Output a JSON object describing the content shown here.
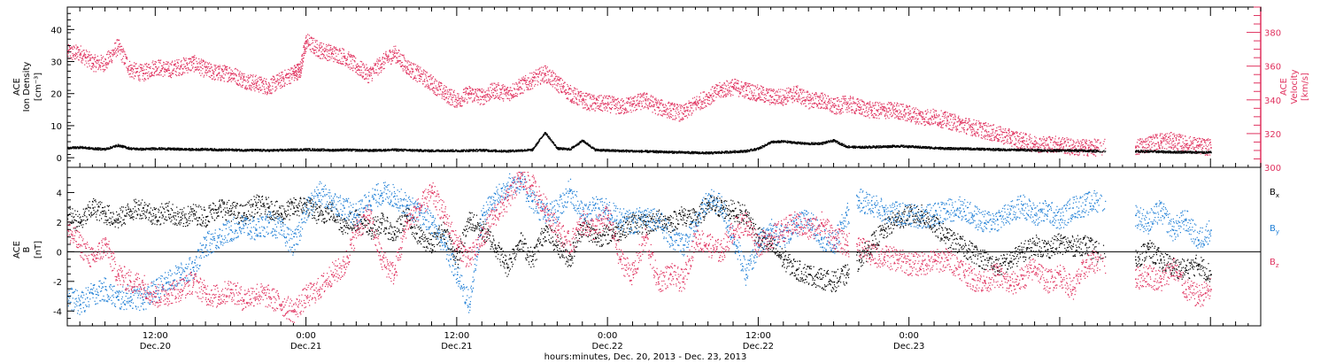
{
  "chart_data": [
    {
      "type": "scatter",
      "ylabel_lines": [
        "ACE",
        "Ion Density",
        "[cm⁻³]"
      ],
      "ylabel_right_lines": [
        "ACE",
        "Velocity",
        "[km/s]"
      ],
      "ylim": [
        -3,
        47
      ],
      "yticks": [
        0,
        10,
        20,
        30,
        40
      ],
      "y2lim": [
        300,
        395
      ],
      "y2ticks": [
        300,
        320,
        340,
        360,
        380
      ],
      "y2_color": "#e0325f",
      "x_range_hours": [
        5,
        100
      ],
      "gaps_hours": [
        [
          87.6,
          90.0
        ]
      ],
      "series": [
        {
          "axis": "right",
          "color": "#e0325f",
          "x": [
            5,
            6,
            7,
            8,
            9,
            10,
            11,
            12,
            13,
            14,
            15,
            16,
            17,
            18,
            19,
            20,
            21,
            22,
            23,
            23.5,
            24,
            25,
            26,
            27,
            28,
            29,
            30,
            31,
            32,
            33,
            34,
            35,
            36,
            37,
            38,
            39,
            40,
            41,
            42,
            43,
            44,
            45,
            46,
            47,
            48,
            49,
            50,
            51,
            52,
            53,
            54,
            55,
            56,
            57,
            58,
            59,
            60,
            61,
            62,
            63,
            64,
            65,
            66,
            67,
            68,
            69,
            70,
            71,
            72,
            73,
            74,
            75,
            76,
            77,
            78,
            79,
            80,
            81,
            82,
            83,
            84,
            85,
            86,
            87,
            90,
            91,
            92,
            93,
            94,
            95,
            96
          ],
          "y": [
            368,
            368,
            362,
            362,
            372,
            358,
            356,
            360,
            358,
            360,
            362,
            358,
            356,
            356,
            352,
            350,
            348,
            352,
            356,
            358,
            375,
            370,
            368,
            366,
            360,
            355,
            362,
            368,
            360,
            355,
            350,
            344,
            340,
            344,
            342,
            346,
            344,
            348,
            352,
            356,
            350,
            344,
            340,
            338,
            338,
            336,
            338,
            340,
            336,
            334,
            332,
            338,
            342,
            346,
            348,
            346,
            344,
            342,
            342,
            344,
            340,
            340,
            336,
            338,
            336,
            334,
            334,
            334,
            332,
            330,
            330,
            328,
            326,
            324,
            322,
            320,
            318,
            316,
            314,
            314,
            314,
            312,
            312,
            312,
            312,
            314,
            316,
            316,
            314,
            313,
            312
          ]
        },
        {
          "axis": "left",
          "color": "#000000",
          "x": [
            5,
            6,
            7,
            8,
            9,
            10,
            11,
            12,
            13,
            14,
            15,
            16,
            17,
            18,
            19,
            20,
            21,
            22,
            23,
            24,
            25,
            26,
            27,
            28,
            29,
            30,
            31,
            32,
            33,
            34,
            35,
            36,
            37,
            38,
            39,
            40,
            41,
            42,
            43,
            44,
            45,
            46,
            47,
            48,
            49,
            50,
            51,
            52,
            53,
            54,
            55,
            56,
            57,
            58,
            59,
            60,
            61,
            62,
            63,
            64,
            65,
            66,
            67,
            68,
            69,
            70,
            71,
            72,
            73,
            74,
            75,
            76,
            77,
            78,
            79,
            80,
            81,
            82,
            83,
            84,
            85,
            86,
            87,
            90,
            91,
            92,
            93,
            94,
            95,
            96
          ],
          "y": [
            3.2,
            3.4,
            3.0,
            2.8,
            4.0,
            3.0,
            2.8,
            3.0,
            2.9,
            2.8,
            2.7,
            2.8,
            2.6,
            2.6,
            2.5,
            2.5,
            2.4,
            2.5,
            2.6,
            2.7,
            2.6,
            2.5,
            2.6,
            2.5,
            2.4,
            2.5,
            2.6,
            2.5,
            2.4,
            2.3,
            2.4,
            2.3,
            2.4,
            2.5,
            2.3,
            2.2,
            2.4,
            2.6,
            8,
            3.0,
            2.8,
            5.5,
            2.6,
            2.4,
            2.3,
            2.2,
            2.1,
            2.0,
            1.9,
            1.8,
            1.7,
            1.6,
            1.8,
            2.0,
            2.2,
            3.0,
            5.0,
            5.2,
            4.8,
            4.5,
            4.6,
            5.5,
            3.6,
            3.4,
            3.5,
            3.6,
            3.8,
            3.6,
            3.4,
            3.2,
            3.0,
            3.0,
            2.9,
            2.8,
            2.7,
            2.6,
            2.6,
            2.5,
            2.4,
            2.4,
            2.4,
            2.3,
            2.2,
            2.2,
            2.1,
            2.0,
            1.9,
            1.9,
            1.8,
            1.8
          ]
        }
      ]
    },
    {
      "type": "scatter",
      "ylabel_lines": [
        "ACE",
        "B",
        "[nT]"
      ],
      "ylim": [
        -5,
        5.7
      ],
      "yticks": [
        -4,
        -2,
        0,
        2,
        4
      ],
      "x_range_hours": [
        5,
        100
      ],
      "gaps_hours": [
        [
          67.2,
          67.8
        ],
        [
          87.6,
          90.0
        ]
      ],
      "series": [
        {
          "name": "B_x",
          "color": "#000000",
          "x": [
            5,
            6,
            7,
            8,
            9,
            10,
            11,
            12,
            13,
            14,
            15,
            16,
            17,
            18,
            19,
            20,
            21,
            22,
            23,
            24,
            25,
            26,
            27,
            28,
            29,
            30,
            31,
            32,
            33,
            34,
            35,
            36,
            37,
            38,
            39,
            40,
            41,
            42,
            43,
            44,
            45,
            46,
            47,
            48,
            49,
            50,
            51,
            52,
            53,
            54,
            55,
            56,
            57,
            58,
            59,
            60,
            61,
            62,
            63,
            64,
            65,
            66,
            67,
            68,
            69,
            70,
            71,
            72,
            73,
            74,
            75,
            76,
            77,
            78,
            79,
            80,
            81,
            82,
            83,
            84,
            85,
            86,
            87,
            90,
            91,
            92,
            93,
            94,
            95,
            96
          ],
          "y": [
            2.5,
            2.0,
            3.0,
            2.6,
            2.2,
            2.8,
            3.0,
            2.4,
            2.8,
            2.2,
            2.6,
            2.4,
            3.0,
            2.8,
            2.5,
            3.2,
            3.0,
            2.6,
            3.0,
            3.2,
            2.5,
            2.8,
            1.8,
            2.2,
            1.5,
            2.0,
            1.2,
            2.5,
            1.0,
            0.5,
            1.5,
            -0.5,
            2.2,
            1.5,
            0.5,
            -1.0,
            0.8,
            -0.5,
            1.5,
            0.5,
            -0.5,
            1.8,
            1.0,
            1.2,
            1.5,
            2.0,
            1.8,
            2.2,
            2.0,
            2.5,
            2.2,
            3.2,
            3.0,
            2.8,
            2.5,
            1.0,
            0.5,
            -0.5,
            -1.2,
            -1.5,
            -1.8,
            -2.0,
            -1.5,
            -0.5,
            0.5,
            1.5,
            2.2,
            2.5,
            2.5,
            1.8,
            1.0,
            0.5,
            0.0,
            -0.5,
            -1.0,
            -0.6,
            0.0,
            0.5,
            0.2,
            0.6,
            0.4,
            0.5,
            0.0,
            -0.5,
            0.2,
            -0.5,
            -1.0,
            -1.2,
            -0.8,
            -1.5
          ]
        },
        {
          "name": "B_y",
          "color": "#1f7fd6",
          "x": [
            5,
            6,
            7,
            8,
            9,
            10,
            11,
            12,
            13,
            14,
            15,
            16,
            17,
            18,
            19,
            20,
            21,
            22,
            23,
            24,
            25,
            26,
            27,
            28,
            29,
            30,
            31,
            32,
            33,
            34,
            35,
            36,
            37,
            38,
            39,
            40,
            41,
            42,
            43,
            44,
            45,
            46,
            47,
            48,
            49,
            50,
            51,
            52,
            53,
            54,
            55,
            56,
            57,
            58,
            59,
            60,
            61,
            62,
            63,
            64,
            65,
            66,
            67,
            68,
            69,
            70,
            71,
            72,
            73,
            74,
            75,
            76,
            77,
            78,
            79,
            80,
            81,
            82,
            83,
            84,
            85,
            86,
            87,
            90,
            91,
            92,
            93,
            94,
            95,
            96
          ],
          "y": [
            -3.0,
            -3.5,
            -2.8,
            -2.5,
            -3.2,
            -3.0,
            -3.2,
            -2.6,
            -2.0,
            -1.5,
            -1.0,
            0.5,
            1.0,
            1.5,
            1.8,
            1.5,
            2.0,
            1.5,
            0.5,
            2.8,
            4.0,
            3.5,
            3.0,
            2.5,
            3.5,
            4.0,
            3.8,
            3.2,
            2.5,
            2.0,
            0.5,
            -1.5,
            -3.5,
            2.5,
            3.5,
            4.5,
            4.8,
            3.5,
            2.5,
            2.8,
            4.2,
            2.5,
            3.0,
            2.8,
            2.2,
            2.0,
            2.5,
            2.2,
            1.0,
            0.5,
            2.0,
            3.5,
            3.2,
            1.0,
            -1.5,
            0.5,
            1.5,
            1.0,
            1.8,
            2.2,
            1.0,
            0.5,
            2.5,
            3.5,
            3.2,
            2.8,
            2.6,
            2.5,
            2.4,
            2.5,
            2.8,
            3.0,
            2.5,
            2.0,
            2.2,
            2.6,
            3.2,
            2.5,
            2.8,
            2.2,
            3.0,
            3.2,
            3.5,
            2.5,
            2.0,
            2.8,
            1.5,
            2.2,
            0.8,
            1.5
          ]
        },
        {
          "name": "B_z",
          "color": "#e0325f",
          "x": [
            5,
            6,
            7,
            8,
            9,
            10,
            11,
            12,
            13,
            14,
            15,
            16,
            17,
            18,
            19,
            20,
            21,
            22,
            23,
            24,
            25,
            26,
            27,
            28,
            29,
            30,
            31,
            32,
            33,
            34,
            35,
            36,
            37,
            38,
            39,
            40,
            41,
            42,
            43,
            44,
            45,
            46,
            47,
            48,
            49,
            50,
            51,
            52,
            53,
            54,
            55,
            56,
            57,
            58,
            59,
            60,
            61,
            62,
            63,
            64,
            65,
            66,
            67,
            68,
            69,
            70,
            71,
            72,
            73,
            74,
            75,
            76,
            77,
            78,
            79,
            80,
            81,
            82,
            83,
            84,
            85,
            86,
            87,
            90,
            91,
            92,
            93,
            94,
            95,
            96
          ],
          "y": [
            1.5,
            0.5,
            -0.5,
            0.5,
            -1.5,
            -2.0,
            -2.2,
            -3.0,
            -2.8,
            -2.5,
            -2.0,
            -2.8,
            -3.0,
            -2.5,
            -3.2,
            -2.8,
            -3.0,
            -3.5,
            -4.0,
            -3.0,
            -2.5,
            -1.5,
            -1.0,
            1.5,
            2.5,
            -0.5,
            -1.5,
            2.0,
            3.0,
            4.0,
            2.5,
            0.5,
            -0.5,
            1.0,
            2.5,
            3.5,
            5.0,
            4.5,
            3.0,
            1.5,
            0.5,
            2.0,
            1.5,
            2.5,
            -0.5,
            -1.5,
            1.0,
            -2.0,
            -1.5,
            -2.0,
            1.0,
            0.5,
            0.0,
            1.5,
            2.0,
            0.5,
            1.0,
            1.5,
            2.0,
            1.5,
            2.0,
            1.0,
            0.5,
            0.5,
            -0.2,
            -0.3,
            -0.5,
            -0.8,
            -0.8,
            -0.6,
            -0.5,
            -1.0,
            -1.8,
            -2.0,
            -1.5,
            -2.2,
            -1.8,
            -1.0,
            -2.0,
            -1.5,
            -2.5,
            -1.0,
            -0.5,
            -1.8,
            -1.5,
            -2.0,
            -1.0,
            -2.5,
            -3.0,
            -2.5
          ]
        }
      ]
    }
  ],
  "legend": {
    "bx_base": "B",
    "bx_sub": "x",
    "by_base": "B",
    "by_sub": "y",
    "bz_base": "B",
    "bz_sub": "z"
  },
  "x_axis": {
    "ticks": [
      {
        "hour": 12,
        "time": "12:00",
        "date": "Dec.20"
      },
      {
        "hour": 24,
        "time": "0:00",
        "date": "Dec.21"
      },
      {
        "hour": 36,
        "time": "12:00",
        "date": "Dec.21"
      },
      {
        "hour": 48,
        "time": "0:00",
        "date": "Dec.22"
      },
      {
        "hour": 60,
        "time": "12:00",
        "date": "Dec.22"
      },
      {
        "hour": 72,
        "time": "0:00",
        "date": "Dec.23"
      }
    ],
    "label": "hours:minutes, Dec. 20, 2013 - Dec. 23, 2013"
  }
}
